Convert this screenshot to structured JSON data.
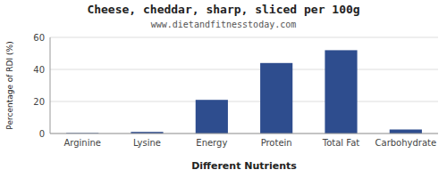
{
  "chart_data": {
    "type": "bar",
    "title": "Cheese, cheddar, sharp, sliced per 100g",
    "subtitle": "www.dietandfitnesstoday.com",
    "xlabel": "Different Nutrients",
    "ylabel": "Percentage of RDI (%)",
    "categories": [
      "Arginine",
      "Lysine",
      "Energy",
      "Protein",
      "Total Fat",
      "Carbohydrate"
    ],
    "values": [
      0.3,
      1.0,
      21.0,
      44.0,
      52.0,
      2.5
    ],
    "color": "#2e4d8e",
    "ylim": [
      0,
      60
    ],
    "yticks": [
      0,
      20,
      40,
      60
    ],
    "grid": true
  }
}
